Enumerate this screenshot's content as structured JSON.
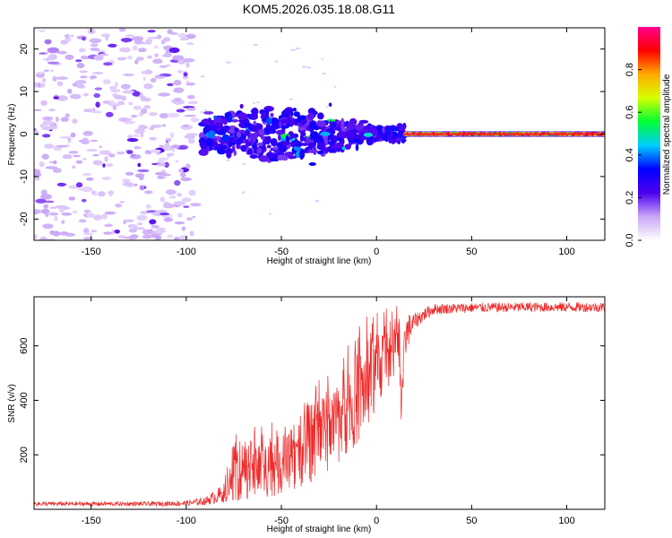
{
  "title": "KOM5.2026.035.18.08.G11",
  "colors": {
    "snr_line": "#ee2a2a",
    "axes": "#000000"
  },
  "chart_data": [
    {
      "type": "heatmap",
      "title": "KOM5.2026.035.18.08.G11",
      "xlabel": "Height of straight line (km)",
      "ylabel": "Frequency (Hz)",
      "xlim": [
        -180,
        120
      ],
      "ylim": [
        -25,
        25
      ],
      "xticks": [
        -150,
        -100,
        -50,
        0,
        50,
        100
      ],
      "yticks": [
        -20,
        -10,
        0,
        10,
        20
      ],
      "colorbar": {
        "label": "Normalized spectral amplitude",
        "range": [
          0,
          1
        ],
        "ticks": [
          0.0,
          0.2,
          0.4,
          0.6,
          0.8
        ],
        "tick_labels": [
          "0.0",
          "0.2",
          "0.4",
          "0.6",
          "0.8"
        ],
        "stops": [
          "#ffffff",
          "#c9a6f7",
          "#4d00f0",
          "#0000ff",
          "#00ccff",
          "#00ff33",
          "#d6ff00",
          "#ffaa00",
          "#ff0000",
          "#ff0090"
        ]
      },
      "features": [
        {
          "x_from": -180,
          "x_to": -100,
          "freq": [
            -25,
            25
          ],
          "amplitude": 0.1,
          "description_level": "noise"
        },
        {
          "x_from": -92,
          "x_to": 5,
          "freq": [
            -8,
            7
          ],
          "amplitude": 0.3
        },
        {
          "x_from": 5,
          "x_to": 15,
          "freq": [
            -3,
            2
          ],
          "amplitude": 0.35
        },
        {
          "x_from": 15,
          "x_to": 120,
          "freq": [
            -0.6,
            0.6
          ],
          "amplitude": 0.95
        }
      ]
    },
    {
      "type": "line",
      "xlabel": "Height of straight line (km)",
      "ylabel": "SNR (v/v)",
      "xlim": [
        -180,
        120
      ],
      "ylim": [
        0,
        780
      ],
      "xticks": [
        -150,
        -100,
        -50,
        0,
        50,
        100
      ],
      "yticks": [
        200,
        400,
        600
      ],
      "series": [
        {
          "name": "SNR",
          "x": [
            -180,
            -150,
            -120,
            -100,
            -90,
            -80,
            -75,
            -70,
            -60,
            -50,
            -40,
            -30,
            -20,
            -10,
            0,
            5,
            10,
            12,
            13,
            15,
            20,
            25,
            30,
            50,
            80,
            100,
            120
          ],
          "mean": [
            20,
            20,
            20,
            22,
            30,
            60,
            120,
            140,
            150,
            160,
            200,
            260,
            330,
            410,
            500,
            560,
            580,
            620,
            320,
            640,
            690,
            715,
            735,
            740,
            742,
            742,
            742
          ],
          "spread": [
            8,
            8,
            8,
            10,
            15,
            35,
            90,
            110,
            110,
            110,
            120,
            150,
            160,
            170,
            150,
            120,
            100,
            100,
            60,
            80,
            30,
            25,
            20,
            18,
            18,
            18,
            18
          ]
        }
      ]
    }
  ]
}
